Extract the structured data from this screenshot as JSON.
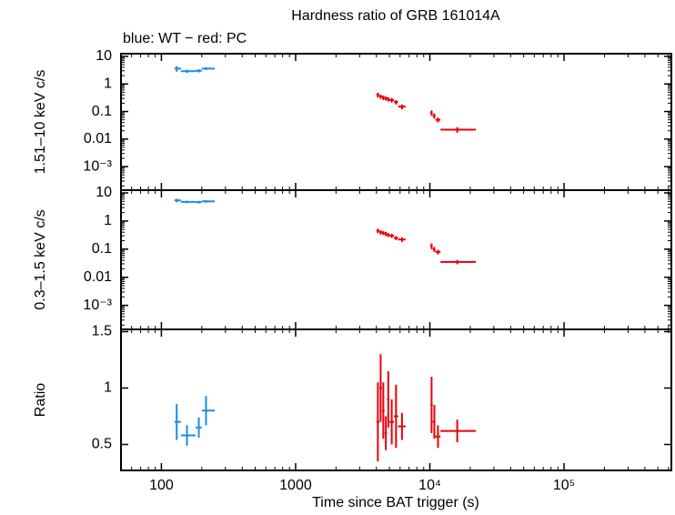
{
  "chart_data": [
    {
      "type": "scatter",
      "title": "Hardness ratio of GRB 161014A",
      "subtitle": "blue: WT − red: PC",
      "ylabel": "1.51–10 keV c/s",
      "xlog": true,
      "ylog": true,
      "xlim": [
        50,
        630000
      ],
      "xticks": [
        100,
        1000,
        10000,
        100000
      ],
      "ylim": [
        0.00014,
        12.5
      ],
      "yticks": [
        10,
        1,
        0.1,
        0.01,
        {
          "value": 0.001,
          "label": "10⁻³"
        }
      ],
      "series": [
        {
          "name": "WT",
          "color": "#1a8ce6",
          "x": [
            130,
            155,
            190,
            215
          ],
          "x_lo": [
            125,
            140,
            180,
            200
          ],
          "x_hi": [
            140,
            180,
            200,
            250
          ],
          "values": [
            3.6,
            2.9,
            3.0,
            3.6
          ],
          "errors": [
            0.8,
            0.4,
            0.4,
            0.4
          ]
        },
        {
          "name": "PC",
          "color": "#e8000b",
          "x": [
            4100,
            4300,
            4500,
            4700,
            4900,
            5200,
            5600,
            6200,
            10300,
            10800,
            11500,
            16000
          ],
          "x_lo": [
            4000,
            4200,
            4400,
            4600,
            4800,
            5000,
            5400,
            5800,
            10100,
            10500,
            11000,
            12000
          ],
          "x_hi": [
            4200,
            4400,
            4600,
            4800,
            5000,
            5400,
            5800,
            6600,
            10500,
            11000,
            12000,
            22000
          ],
          "values": [
            0.4,
            0.35,
            0.32,
            0.3,
            0.28,
            0.26,
            0.22,
            0.15,
            0.09,
            0.07,
            0.05,
            0.022
          ],
          "errors": [
            0.08,
            0.06,
            0.06,
            0.05,
            0.05,
            0.05,
            0.04,
            0.03,
            0.02,
            0.015,
            0.01,
            0.005
          ]
        }
      ]
    },
    {
      "type": "scatter",
      "ylabel": "0.3–1.5 keV c/s",
      "xlog": true,
      "ylog": true,
      "xlim": [
        50,
        630000
      ],
      "xticks": [
        100,
        1000,
        10000,
        100000
      ],
      "ylim": [
        0.00014,
        12.5
      ],
      "yticks": [
        10,
        1,
        0.1,
        0.01,
        {
          "value": 0.001,
          "label": "10⁻³"
        }
      ],
      "series": [
        {
          "name": "WT",
          "color": "#1a8ce6",
          "x": [
            130,
            155,
            190,
            215
          ],
          "x_lo": [
            125,
            140,
            180,
            200
          ],
          "x_hi": [
            140,
            180,
            200,
            250
          ],
          "values": [
            5.4,
            4.8,
            4.7,
            5.0
          ],
          "errors": [
            0.8,
            0.5,
            0.5,
            0.5
          ]
        },
        {
          "name": "PC",
          "color": "#e8000b",
          "x": [
            4100,
            4300,
            4500,
            4700,
            4900,
            5200,
            5600,
            6200,
            10300,
            10800,
            11500,
            16000
          ],
          "x_lo": [
            4000,
            4200,
            4400,
            4600,
            4800,
            5000,
            5400,
            5800,
            10100,
            10500,
            11000,
            12000
          ],
          "x_hi": [
            4200,
            4400,
            4600,
            4800,
            5000,
            5400,
            5800,
            6600,
            10500,
            11000,
            12000,
            22000
          ],
          "values": [
            0.45,
            0.4,
            0.38,
            0.35,
            0.32,
            0.3,
            0.25,
            0.22,
            0.13,
            0.1,
            0.08,
            0.035
          ],
          "errors": [
            0.08,
            0.07,
            0.06,
            0.06,
            0.05,
            0.05,
            0.04,
            0.04,
            0.03,
            0.02,
            0.015,
            0.006
          ]
        }
      ]
    },
    {
      "type": "scatter",
      "ylabel": "Ratio",
      "xlabel": "Time since BAT trigger (s)",
      "xlog": true,
      "ylog": false,
      "xlim": [
        50,
        630000
      ],
      "xticks": [
        100,
        1000,
        {
          "value": 10000,
          "label": "10⁴"
        },
        {
          "value": 100000,
          "label": "10⁵"
        }
      ],
      "ylim": [
        0.27,
        1.52
      ],
      "yticks": [
        1.5,
        1,
        0.5
      ],
      "series": [
        {
          "name": "WT",
          "color": "#1a8ce6",
          "x": [
            130,
            155,
            190,
            215
          ],
          "x_lo": [
            125,
            140,
            180,
            200
          ],
          "x_hi": [
            140,
            180,
            200,
            250
          ],
          "values": [
            0.7,
            0.58,
            0.65,
            0.8
          ],
          "errors": [
            0.16,
            0.09,
            0.09,
            0.13
          ]
        },
        {
          "name": "PC",
          "color": "#e8000b",
          "x": [
            4100,
            4300,
            4500,
            4700,
            4900,
            5200,
            5600,
            6200,
            10300,
            10800,
            11500,
            16000
          ],
          "x_lo": [
            4000,
            4200,
            4400,
            4600,
            4800,
            5000,
            5400,
            5800,
            10100,
            10500,
            11000,
            12000
          ],
          "x_hi": [
            4200,
            4400,
            4600,
            4800,
            5000,
            5400,
            5800,
            6600,
            10500,
            11000,
            12000,
            22000
          ],
          "values": [
            0.7,
            1.0,
            0.8,
            0.6,
            0.9,
            0.7,
            0.75,
            0.66,
            0.85,
            0.7,
            0.57,
            0.62
          ],
          "errors": [
            0.35,
            0.3,
            0.25,
            0.15,
            0.25,
            0.2,
            0.28,
            0.12,
            0.25,
            0.15,
            0.1,
            0.1
          ]
        }
      ]
    }
  ]
}
